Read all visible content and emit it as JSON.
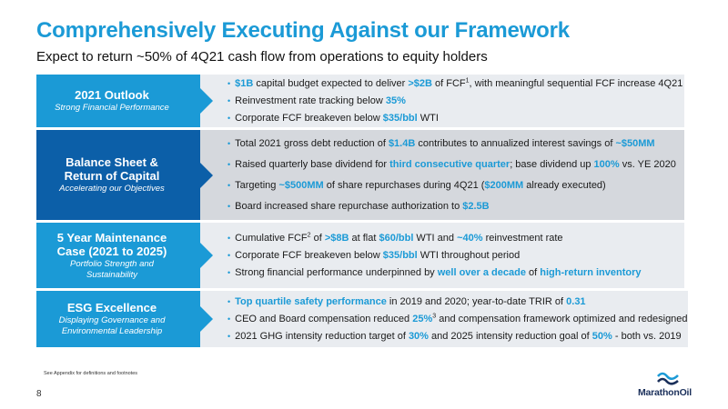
{
  "title": "Comprehensively Executing Against our Framework",
  "subtitle": "Expect to return ~50% of 4Q21 cash flow from operations to equity holders",
  "colors": {
    "accent": "#1b9ad6",
    "dark_blue": "#0c5fa8",
    "navy": "#1a2f5a"
  },
  "rows": [
    {
      "title": "2021 Outlook",
      "subtitle": "Strong Financial Performance",
      "bullets": [
        [
          {
            "t": "$1B",
            "h": true
          },
          {
            "t": " capital budget expected to deliver "
          },
          {
            "t": ">$2B",
            "h": true
          },
          {
            "t": " of FCF"
          },
          {
            "t": "1",
            "sup": true
          },
          {
            "t": ", with meaningful sequential FCF increase 4Q21"
          }
        ],
        [
          {
            "t": "Reinvestment rate tracking below "
          },
          {
            "t": "35%",
            "h": true
          }
        ],
        [
          {
            "t": "Corporate FCF breakeven below "
          },
          {
            "t": "$35/bbl",
            "h": true
          },
          {
            "t": " WTI"
          }
        ]
      ]
    },
    {
      "title": "Balance Sheet & Return of Capital",
      "subtitle": "Accelerating our Objectives",
      "bullets": [
        [
          {
            "t": "Total 2021 gross debt reduction of "
          },
          {
            "t": "$1.4B",
            "h": true
          },
          {
            "t": " contributes to annualized interest savings of "
          },
          {
            "t": "~$50MM",
            "h": true
          }
        ],
        [
          {
            "t": "Raised quarterly base dividend for "
          },
          {
            "t": "third consecutive quarter",
            "h": true
          },
          {
            "t": "; base dividend up "
          },
          {
            "t": "100%",
            "h": true
          },
          {
            "t": " vs. YE 2020"
          }
        ],
        [
          {
            "t": "Targeting "
          },
          {
            "t": "~$500MM",
            "h": true
          },
          {
            "t": " of share repurchases during 4Q21 ("
          },
          {
            "t": "$200MM",
            "h": true
          },
          {
            "t": " already executed)"
          }
        ],
        [
          {
            "t": "Board increased share repurchase authorization to "
          },
          {
            "t": "$2.5B",
            "h": true
          }
        ]
      ]
    },
    {
      "title": "5 Year Maintenance Case (2021 to 2025)",
      "subtitle": "Portfolio Strength and Sustainability",
      "bullets": [
        [
          {
            "t": "Cumulative FCF"
          },
          {
            "t": "2",
            "sup": true
          },
          {
            "t": " of "
          },
          {
            "t": ">$8B",
            "h": true
          },
          {
            "t": " at flat "
          },
          {
            "t": "$60/bbl",
            "h": true
          },
          {
            "t": " WTI and "
          },
          {
            "t": "~40%",
            "h": true
          },
          {
            "t": " reinvestment rate"
          }
        ],
        [
          {
            "t": "Corporate FCF breakeven below "
          },
          {
            "t": "$35/bbl",
            "h": true
          },
          {
            "t": " WTI throughout period"
          }
        ],
        [
          {
            "t": "Strong financial performance underpinned by "
          },
          {
            "t": "well over a decade",
            "h": true
          },
          {
            "t": " of "
          },
          {
            "t": "high-return inventory",
            "h": true
          }
        ]
      ]
    },
    {
      "title": "ESG Excellence",
      "subtitle": "Displaying Governance and Environmental Leadership",
      "bullets": [
        [
          {
            "t": "Top quartile safety performance",
            "h": true
          },
          {
            "t": " in 2019 and 2020; year-to-date TRIR of "
          },
          {
            "t": "0.31",
            "h": true
          }
        ],
        [
          {
            "t": "CEO and Board compensation reduced "
          },
          {
            "t": "25%",
            "h": true
          },
          {
            "t": "3",
            "sup": true
          },
          {
            "t": " and compensation framework optimized and redesigned"
          }
        ],
        [
          {
            "t": "2021 GHG intensity reduction target of "
          },
          {
            "t": "30%",
            "h": true
          },
          {
            "t": " and 2025 intensity reduction goal of "
          },
          {
            "t": "50%",
            "h": true
          },
          {
            "t": " - both vs. 2019"
          }
        ]
      ]
    }
  ],
  "footnote": "See Appendix for definitions and footnotes",
  "page_number": "8",
  "logo": {
    "name": "MarathonOil",
    "icon": "marathon-wave-logo-icon"
  }
}
